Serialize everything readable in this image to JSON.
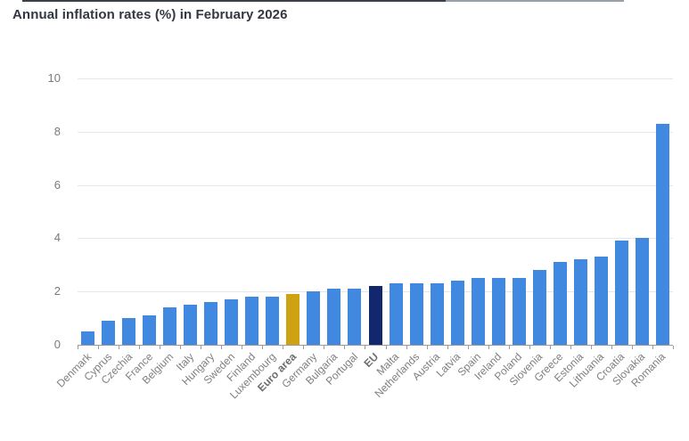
{
  "title": "Annual inflation rates (%) in February 2026",
  "colors": {
    "bar_default": "#4189e0",
    "bar_euro_area": "#cfa213",
    "bar_eu": "#13276e",
    "grid": "#e5e6e8",
    "axis": "#9a9a9a",
    "tick_label": "#7a7a7a",
    "x_label": "#7f7f7f",
    "title_text": "#343741"
  },
  "chart_data": {
    "type": "bar",
    "title": "Annual inflation rates (%) in February 2026",
    "xlabel": "",
    "ylabel": "",
    "ylim": [
      0,
      10
    ],
    "yticks": [
      0,
      2,
      4,
      6,
      8,
      10
    ],
    "grid": "horizontal",
    "legend": "none",
    "categories": [
      "Denmark",
      "Cyprus",
      "Czechia",
      "France",
      "Belgium",
      "Italy",
      "Hungary",
      "Sweden",
      "Finland",
      "Luxembourg",
      "Euro area",
      "Germany",
      "Bulgaria",
      "Portugal",
      "EU",
      "Malta",
      "Netherlands",
      "Austria",
      "Latvia",
      "Spain",
      "Ireland",
      "Poland",
      "Slovenia",
      "Greece",
      "Estonia",
      "Lithuania",
      "Croatia",
      "Slovakia",
      "Romania"
    ],
    "values": [
      0.5,
      0.9,
      1.0,
      1.1,
      1.4,
      1.5,
      1.6,
      1.7,
      1.8,
      1.8,
      1.9,
      2.0,
      2.1,
      2.1,
      2.2,
      2.3,
      2.3,
      2.3,
      2.4,
      2.5,
      2.5,
      2.5,
      2.8,
      3.1,
      3.2,
      3.3,
      3.9,
      4.0,
      8.3
    ],
    "highlighted_categories": {
      "Euro area": "bar_euro_area",
      "EU": "bar_eu"
    },
    "bold_categories": [
      "Euro area",
      "EU"
    ]
  }
}
